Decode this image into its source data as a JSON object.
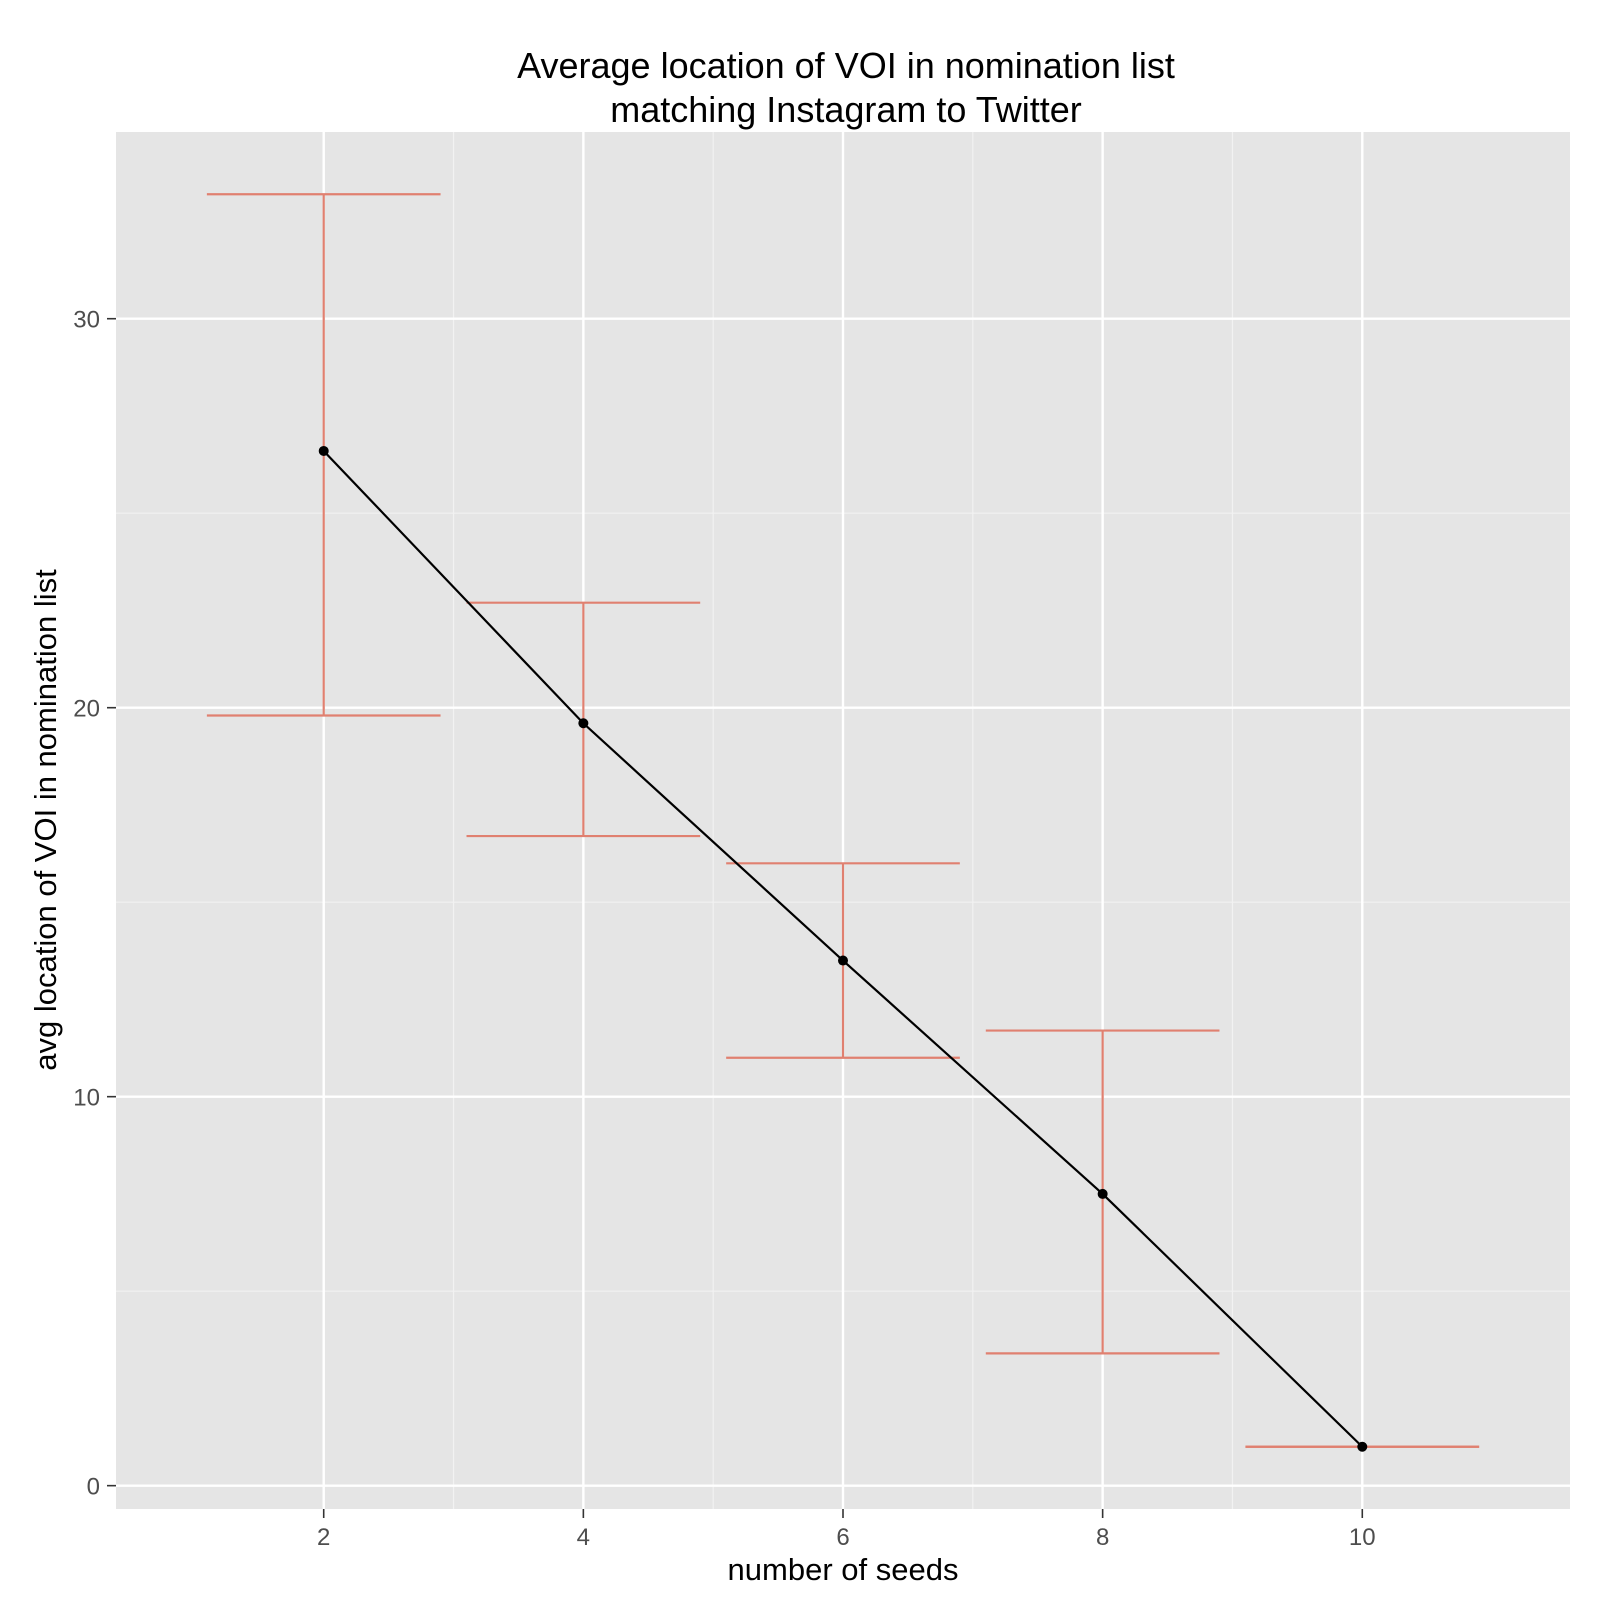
{
  "chart_data": {
    "type": "line",
    "title": [
      "Average location of VOI in nomination list",
      "matching Instagram to Twitter"
    ],
    "xlabel": "number of seeds",
    "ylabel": "avg location of VOI in nomination list",
    "x": [
      2,
      4,
      6,
      8,
      10
    ],
    "series": [
      {
        "values": [
          26.6,
          19.6,
          13.5,
          7.5,
          1.0
        ],
        "error_low": [
          19.8,
          16.7,
          11.0,
          3.4,
          1.0
        ],
        "error_high": [
          33.2,
          22.7,
          16.0,
          11.7,
          1.0
        ]
      }
    ],
    "xlim": [
      0.4,
      11.6
    ],
    "ylim": [
      -0.6,
      34.8
    ],
    "x_ticks": [
      2,
      4,
      6,
      8,
      10
    ],
    "y_ticks": [
      0,
      10,
      20,
      30
    ],
    "y_minor_ticks": [
      5,
      15,
      25
    ],
    "grid": true,
    "colors": {
      "panel": "#e5e5e5",
      "grid": "#ffffff",
      "line": "#000000",
      "point": "#000000",
      "error_bar": "#e08070",
      "tick_label": "#4d4d4d"
    }
  }
}
